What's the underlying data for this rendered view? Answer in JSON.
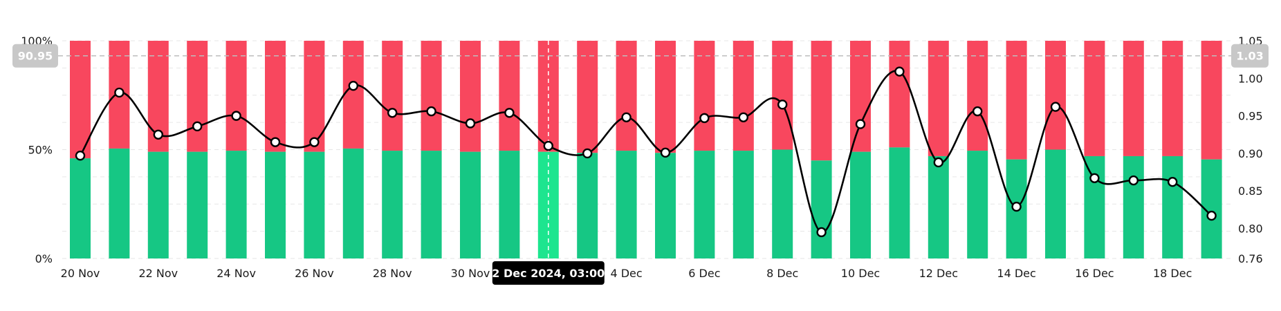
{
  "chart_data": {
    "type": "bar",
    "description_series": [
      {
        "name": "",
        "color": "#16c784",
        "kind": "stacked-bar-bottom"
      },
      {
        "name": "",
        "color": "#f8475e",
        "kind": "stacked-bar-top"
      },
      {
        "name": "",
        "color": "#000000",
        "kind": "line-right-axis"
      }
    ],
    "x": [
      "20 Nov",
      "21 Nov",
      "22 Nov",
      "23 Nov",
      "24 Nov",
      "25 Nov",
      "26 Nov",
      "27 Nov",
      "28 Nov",
      "29 Nov",
      "30 Nov",
      "1 Dec",
      "2 Dec",
      "3 Dec",
      "4 Dec",
      "5 Dec",
      "6 Dec",
      "7 Dec",
      "8 Dec",
      "9 Dec",
      "10 Dec",
      "11 Dec",
      "12 Dec",
      "13 Dec",
      "14 Dec",
      "15 Dec",
      "16 Dec",
      "17 Dec",
      "18 Dec",
      "19 Dec"
    ],
    "x_tick_labels": [
      "20 Nov",
      "22 Nov",
      "24 Nov",
      "26 Nov",
      "28 Nov",
      "30 Nov",
      "4 Dec",
      "6 Dec",
      "8 Dec",
      "10 Dec",
      "12 Dec",
      "14 Dec",
      "16 Dec",
      "18 Dec"
    ],
    "green_percent": [
      46,
      50.5,
      49,
      49,
      49.5,
      49,
      49,
      50.5,
      49.5,
      49.5,
      49,
      49.5,
      49,
      48.5,
      49.5,
      48.5,
      49.5,
      49.5,
      50,
      45,
      49,
      51,
      47,
      49.5,
      45.5,
      50,
      47,
      47,
      47,
      45.5
    ],
    "line_values": [
      0.897,
      0.981,
      0.925,
      0.936,
      0.95,
      0.915,
      0.915,
      0.99,
      0.954,
      0.956,
      0.94,
      0.954,
      0.91,
      0.9,
      0.948,
      0.901,
      0.947,
      0.948,
      0.965,
      0.795,
      0.939,
      1.009,
      0.888,
      0.956,
      0.829,
      0.962,
      0.867,
      0.864,
      0.862,
      0.817
    ],
    "left_axis": {
      "ticks": [
        "100%",
        "50%",
        "0%"
      ],
      "range": [
        0,
        100
      ]
    },
    "right_axis": {
      "ticks": [
        "1.05",
        "1.00",
        "0.95",
        "0.90",
        "0.85",
        "0.80",
        "0.76"
      ],
      "range": [
        0.76,
        1.05
      ]
    },
    "crosshair": {
      "index": 12,
      "label": "2 Dec 2024, 03:00",
      "left_value_label": "90.95",
      "right_value_label": "1.03",
      "right_value": 1.03
    },
    "colors": {
      "green": "#16c784",
      "green_highlight": "#1de58f",
      "red": "#f8475e",
      "line": "#000000",
      "grid": "#e6e6e6",
      "badge_bg": "#000000",
      "value_badge_bg": "#c8c8c8"
    },
    "grid": true
  }
}
